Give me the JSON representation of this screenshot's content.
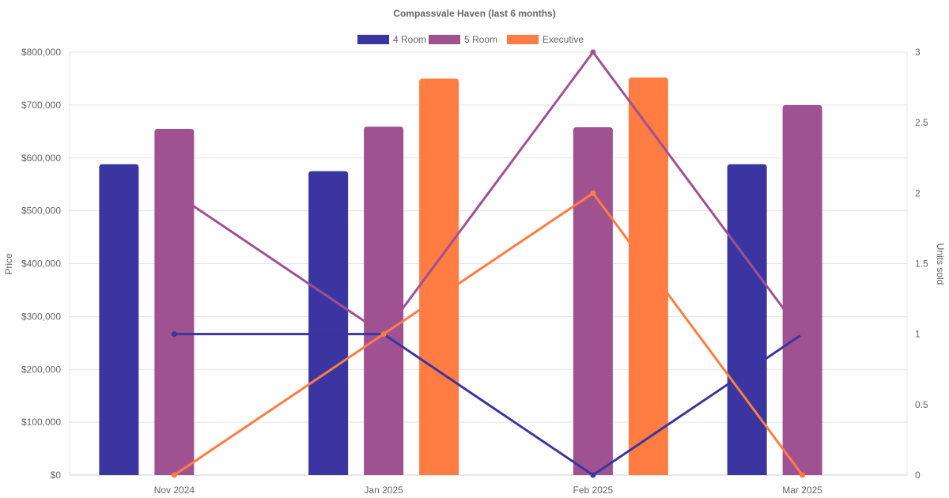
{
  "chart_data": {
    "type": "bar",
    "title": "Compassvale Haven (last 6 months)",
    "categories": [
      "Nov 2024",
      "Jan 2025",
      "Feb 2025",
      "Mar 2025"
    ],
    "ylabel": "Price",
    "y2label": "Units sold",
    "ylim": [
      0,
      800000
    ],
    "y2lim": [
      0,
      3
    ],
    "yticks": [
      "$0",
      "$100,000",
      "$200,000",
      "$300,000",
      "$400,000",
      "$500,000",
      "$600,000",
      "$700,000",
      "$800,000"
    ],
    "y2ticks": [
      "0",
      "0.5",
      "1",
      "1.5",
      "2",
      "2.5",
      "3"
    ],
    "legend_position": "top",
    "grid": true,
    "series": [
      {
        "name": "4 Room",
        "color": "#3a35a0",
        "price": [
          588000,
          575000,
          null,
          588000
        ],
        "units": [
          1,
          1,
          0,
          1
        ]
      },
      {
        "name": "5 Room",
        "color": "#a05192",
        "price": [
          655000,
          659000,
          658000,
          700000
        ],
        "units": [
          2,
          1,
          3,
          1
        ]
      },
      {
        "name": "Executive",
        "color": "#ff7c43",
        "price": [
          null,
          750000,
          752000,
          null
        ],
        "units": [
          0,
          1,
          2,
          0
        ]
      }
    ]
  }
}
